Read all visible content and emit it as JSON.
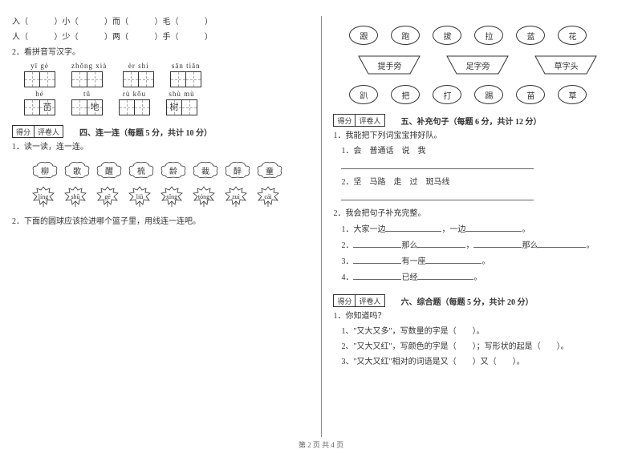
{
  "left": {
    "pair_row1": [
      "入（",
      "）小（",
      "）而（",
      "）毛（",
      "）"
    ],
    "pair_row2": [
      "人（",
      "）少（",
      "）两（",
      "）手（",
      "）"
    ],
    "q2_label": "2．看拼音写汉字。",
    "grid1": [
      {
        "pinyin": "yī gè",
        "fills": [
          "",
          ""
        ]
      },
      {
        "pinyin": "zhǒng xià",
        "fills": [
          "",
          ""
        ]
      },
      {
        "pinyin": "èr shí",
        "fills": [
          "",
          ""
        ]
      },
      {
        "pinyin": "sān tiān",
        "fills": [
          "",
          ""
        ]
      }
    ],
    "grid2": [
      {
        "pinyin": "hé",
        "fills": [
          "",
          "苗"
        ]
      },
      {
        "pinyin": "tǔ",
        "fills": [
          "",
          "地"
        ]
      },
      {
        "pinyin": "rù kǒu",
        "fills": [
          "",
          ""
        ]
      },
      {
        "pinyin": "shù mù",
        "fills": [
          "树",
          ""
        ]
      }
    ],
    "score_labels": [
      "得分",
      "评卷人"
    ],
    "section4_title": "四、连一连（每题 5 分，共计 10 分）",
    "q4_1": "1．读一读，连一连。",
    "clouds": [
      "柳",
      "歌",
      "醒",
      "梳",
      "龄",
      "裁",
      "醉",
      "童"
    ],
    "leaves": [
      "líng",
      "shū",
      "gē",
      "liǔ",
      "xǐng",
      "tóng",
      "zuì",
      "cái"
    ],
    "q4_2": "2．下面的圆球应该捡进哪个篮子里，用线连一连吧。"
  },
  "right": {
    "ovals1": [
      "跟",
      "跑",
      "拔",
      "拉",
      "蓝",
      "花"
    ],
    "traps": [
      "提手旁",
      "足字旁",
      "草字头"
    ],
    "ovals2": [
      "趴",
      "把",
      "打",
      "踢",
      "苗",
      "草"
    ],
    "score_labels": [
      "得分",
      "评卷人"
    ],
    "section5_title": "五、补充句子（每题 6 分，共计 12 分）",
    "q5_1": "1．我能把下列词宝宝排好队。",
    "q5_1_1": "1．会　普通话　说　我",
    "q5_1_2": "2．坚　马路　走　过　斑马线",
    "q5_2": "2．我会把句子补充完整。",
    "q5_2_items": [
      {
        "n": "1",
        "pre": "．大家一边",
        "mid": "，一边",
        "end": "。"
      },
      {
        "n": "2",
        "pre": "．",
        "a": "那么",
        "b": "，",
        "c": "那么",
        "end": "。"
      },
      {
        "n": "3",
        "pre": "．",
        "a": "有一座",
        "end": "。"
      },
      {
        "n": "4",
        "pre": "．",
        "a": "已经",
        "end": "。"
      }
    ],
    "section6_title": "六、综合题（每题 5 分，共计 20 分）",
    "q6_1": "1．你知道吗？",
    "q6_items": [
      "1、\"又大又多\"，写数量的字是（　　）。",
      "2、\"又大又红\"，写颜色的字是（　　）；写形状的起是（　　）。",
      "3、\"又大又红\"相对的词语是又（　　）又（　　）。"
    ]
  },
  "footer": "第 2 页 共 4 页"
}
